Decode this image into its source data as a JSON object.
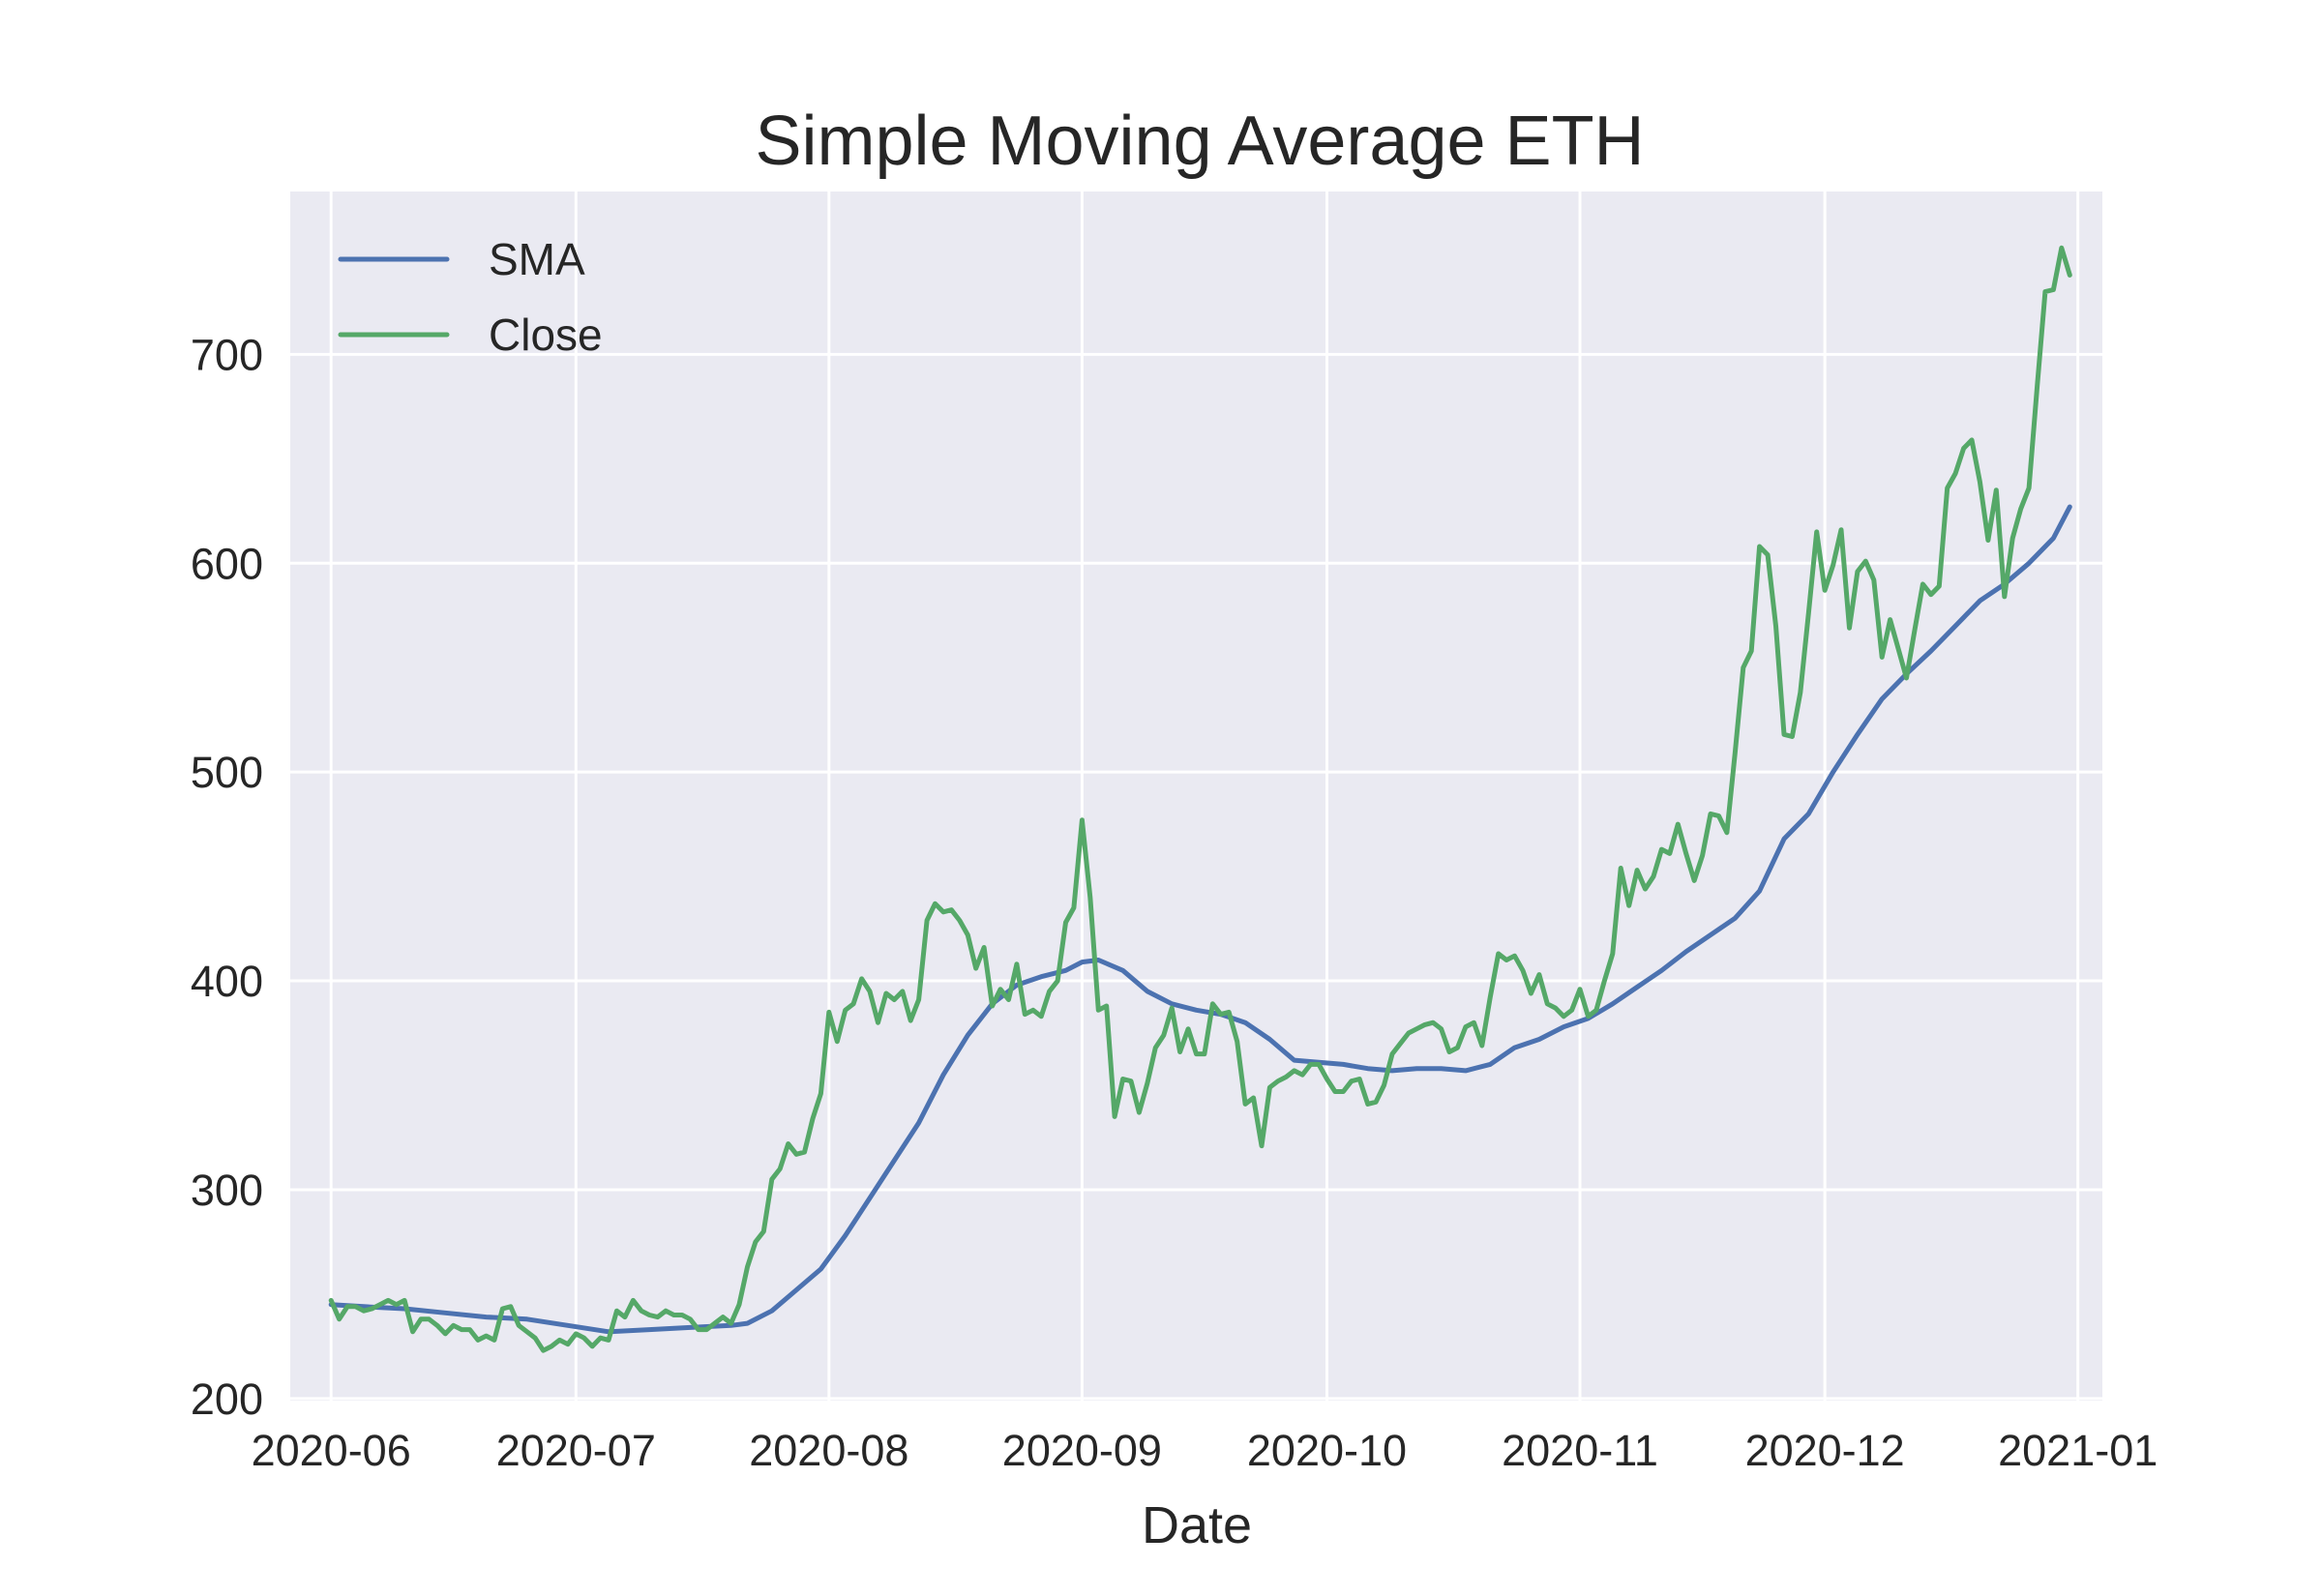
{
  "chart_data": {
    "type": "line",
    "title": "Simple Moving Average ETH",
    "xlabel": "Date",
    "ylabel": "",
    "xlim": [
      "2020-05-27",
      "2021-01-04"
    ],
    "ylim": [
      199,
      778
    ],
    "x_ticks": [
      "2020-06-01",
      "2020-07-01",
      "2020-08-01",
      "2020-09-01",
      "2020-10-01",
      "2020-11-01",
      "2020-12-01",
      "2021-01-01"
    ],
    "x_tick_labels": [
      "2020-06",
      "2020-07",
      "2020-08",
      "2020-09",
      "2020-10",
      "2020-11",
      "2020-12",
      "2021-01"
    ],
    "y_ticks": [
      200,
      300,
      400,
      500,
      600,
      700
    ],
    "y_tick_labels": [
      "200",
      "300",
      "400",
      "500",
      "600",
      "700"
    ],
    "grid": true,
    "background": "#eaeaf2",
    "legend_position": "upper-left",
    "series": [
      {
        "name": "SMA",
        "color": "#4c72b0",
        "points": [
          [
            "2020-06-01",
            245
          ],
          [
            "2020-06-05",
            244
          ],
          [
            "2020-06-10",
            243
          ],
          [
            "2020-06-15",
            241
          ],
          [
            "2020-06-20",
            239
          ],
          [
            "2020-06-25",
            238
          ],
          [
            "2020-06-30",
            235
          ],
          [
            "2020-07-05",
            232
          ],
          [
            "2020-07-10",
            233
          ],
          [
            "2020-07-15",
            234
          ],
          [
            "2020-07-20",
            235
          ],
          [
            "2020-07-22",
            236
          ],
          [
            "2020-07-25",
            242
          ],
          [
            "2020-07-28",
            252
          ],
          [
            "2020-07-31",
            262
          ],
          [
            "2020-08-03",
            278
          ],
          [
            "2020-08-06",
            296
          ],
          [
            "2020-08-09",
            314
          ],
          [
            "2020-08-12",
            332
          ],
          [
            "2020-08-15",
            355
          ],
          [
            "2020-08-18",
            374
          ],
          [
            "2020-08-21",
            389
          ],
          [
            "2020-08-24",
            398
          ],
          [
            "2020-08-27",
            402
          ],
          [
            "2020-08-30",
            405
          ],
          [
            "2020-09-01",
            409
          ],
          [
            "2020-09-03",
            410
          ],
          [
            "2020-09-06",
            405
          ],
          [
            "2020-09-09",
            395
          ],
          [
            "2020-09-12",
            389
          ],
          [
            "2020-09-15",
            386
          ],
          [
            "2020-09-18",
            384
          ],
          [
            "2020-09-21",
            380
          ],
          [
            "2020-09-24",
            372
          ],
          [
            "2020-09-27",
            362
          ],
          [
            "2020-09-30",
            361
          ],
          [
            "2020-10-03",
            360
          ],
          [
            "2020-10-06",
            358
          ],
          [
            "2020-10-09",
            357
          ],
          [
            "2020-10-12",
            358
          ],
          [
            "2020-10-15",
            358
          ],
          [
            "2020-10-18",
            357
          ],
          [
            "2020-10-21",
            360
          ],
          [
            "2020-10-24",
            368
          ],
          [
            "2020-10-27",
            372
          ],
          [
            "2020-10-30",
            378
          ],
          [
            "2020-11-02",
            382
          ],
          [
            "2020-11-05",
            389
          ],
          [
            "2020-11-08",
            397
          ],
          [
            "2020-11-11",
            405
          ],
          [
            "2020-11-14",
            414
          ],
          [
            "2020-11-17",
            422
          ],
          [
            "2020-11-20",
            430
          ],
          [
            "2020-11-23",
            443
          ],
          [
            "2020-11-26",
            468
          ],
          [
            "2020-11-29",
            480
          ],
          [
            "2020-12-02",
            500
          ],
          [
            "2020-12-05",
            518
          ],
          [
            "2020-12-08",
            535
          ],
          [
            "2020-12-11",
            547
          ],
          [
            "2020-12-14",
            558
          ],
          [
            "2020-12-17",
            570
          ],
          [
            "2020-12-20",
            582
          ],
          [
            "2020-12-23",
            590
          ],
          [
            "2020-12-26",
            600
          ],
          [
            "2020-12-29",
            612
          ],
          [
            "2020-12-31",
            627
          ]
        ]
      },
      {
        "name": "Close",
        "color": "#55a868",
        "points": [
          [
            "2020-06-01",
            247
          ],
          [
            "2020-06-02",
            238
          ],
          [
            "2020-06-03",
            244
          ],
          [
            "2020-06-04",
            244
          ],
          [
            "2020-06-05",
            242
          ],
          [
            "2020-06-06",
            243
          ],
          [
            "2020-06-07",
            245
          ],
          [
            "2020-06-08",
            247
          ],
          [
            "2020-06-09",
            245
          ],
          [
            "2020-06-10",
            247
          ],
          [
            "2020-06-11",
            232
          ],
          [
            "2020-06-12",
            238
          ],
          [
            "2020-06-13",
            238
          ],
          [
            "2020-06-14",
            235
          ],
          [
            "2020-06-15",
            231
          ],
          [
            "2020-06-16",
            235
          ],
          [
            "2020-06-17",
            233
          ],
          [
            "2020-06-18",
            233
          ],
          [
            "2020-06-19",
            228
          ],
          [
            "2020-06-20",
            230
          ],
          [
            "2020-06-21",
            228
          ],
          [
            "2020-06-22",
            243
          ],
          [
            "2020-06-23",
            244
          ],
          [
            "2020-06-24",
            235
          ],
          [
            "2020-06-25",
            232
          ],
          [
            "2020-06-26",
            229
          ],
          [
            "2020-06-27",
            223
          ],
          [
            "2020-06-28",
            225
          ],
          [
            "2020-06-29",
            228
          ],
          [
            "2020-06-30",
            226
          ],
          [
            "2020-07-01",
            231
          ],
          [
            "2020-07-02",
            229
          ],
          [
            "2020-07-03",
            225
          ],
          [
            "2020-07-04",
            229
          ],
          [
            "2020-07-05",
            228
          ],
          [
            "2020-07-06",
            242
          ],
          [
            "2020-07-07",
            239
          ],
          [
            "2020-07-08",
            247
          ],
          [
            "2020-07-09",
            242
          ],
          [
            "2020-07-10",
            240
          ],
          [
            "2020-07-11",
            239
          ],
          [
            "2020-07-12",
            242
          ],
          [
            "2020-07-13",
            240
          ],
          [
            "2020-07-14",
            240
          ],
          [
            "2020-07-15",
            238
          ],
          [
            "2020-07-16",
            233
          ],
          [
            "2020-07-17",
            233
          ],
          [
            "2020-07-18",
            236
          ],
          [
            "2020-07-19",
            239
          ],
          [
            "2020-07-20",
            236
          ],
          [
            "2020-07-21",
            245
          ],
          [
            "2020-07-22",
            263
          ],
          [
            "2020-07-23",
            275
          ],
          [
            "2020-07-24",
            280
          ],
          [
            "2020-07-25",
            305
          ],
          [
            "2020-07-26",
            310
          ],
          [
            "2020-07-27",
            322
          ],
          [
            "2020-07-28",
            317
          ],
          [
            "2020-07-29",
            318
          ],
          [
            "2020-07-30",
            334
          ],
          [
            "2020-07-31",
            346
          ],
          [
            "2020-08-01",
            385
          ],
          [
            "2020-08-02",
            371
          ],
          [
            "2020-08-03",
            386
          ],
          [
            "2020-08-04",
            389
          ],
          [
            "2020-08-05",
            401
          ],
          [
            "2020-08-06",
            395
          ],
          [
            "2020-08-07",
            380
          ],
          [
            "2020-08-08",
            394
          ],
          [
            "2020-08-09",
            391
          ],
          [
            "2020-08-10",
            395
          ],
          [
            "2020-08-11",
            381
          ],
          [
            "2020-08-12",
            391
          ],
          [
            "2020-08-13",
            429
          ],
          [
            "2020-08-14",
            437
          ],
          [
            "2020-08-15",
            433
          ],
          [
            "2020-08-16",
            434
          ],
          [
            "2020-08-17",
            429
          ],
          [
            "2020-08-18",
            422
          ],
          [
            "2020-08-19",
            406
          ],
          [
            "2020-08-20",
            416
          ],
          [
            "2020-08-21",
            388
          ],
          [
            "2020-08-22",
            396
          ],
          [
            "2020-08-23",
            391
          ],
          [
            "2020-08-24",
            408
          ],
          [
            "2020-08-25",
            384
          ],
          [
            "2020-08-26",
            386
          ],
          [
            "2020-08-27",
            383
          ],
          [
            "2020-08-28",
            395
          ],
          [
            "2020-08-29",
            400
          ],
          [
            "2020-08-30",
            428
          ],
          [
            "2020-08-31",
            435
          ],
          [
            "2020-09-01",
            477
          ],
          [
            "2020-09-02",
            440
          ],
          [
            "2020-09-03",
            386
          ],
          [
            "2020-09-04",
            388
          ],
          [
            "2020-09-05",
            335
          ],
          [
            "2020-09-06",
            353
          ],
          [
            "2020-09-07",
            352
          ],
          [
            "2020-09-08",
            337
          ],
          [
            "2020-09-09",
            351
          ],
          [
            "2020-09-10",
            368
          ],
          [
            "2020-09-11",
            374
          ],
          [
            "2020-09-12",
            387
          ],
          [
            "2020-09-13",
            366
          ],
          [
            "2020-09-14",
            377
          ],
          [
            "2020-09-15",
            365
          ],
          [
            "2020-09-16",
            365
          ],
          [
            "2020-09-17",
            389
          ],
          [
            "2020-09-18",
            384
          ],
          [
            "2020-09-19",
            385
          ],
          [
            "2020-09-20",
            371
          ],
          [
            "2020-09-21",
            341
          ],
          [
            "2020-09-22",
            344
          ],
          [
            "2020-09-23",
            321
          ],
          [
            "2020-09-24",
            349
          ],
          [
            "2020-09-25",
            352
          ],
          [
            "2020-09-26",
            354
          ],
          [
            "2020-09-27",
            357
          ],
          [
            "2020-09-28",
            355
          ],
          [
            "2020-09-29",
            360
          ],
          [
            "2020-09-30",
            360
          ],
          [
            "2020-10-01",
            353
          ],
          [
            "2020-10-02",
            347
          ],
          [
            "2020-10-03",
            347
          ],
          [
            "2020-10-04",
            352
          ],
          [
            "2020-10-05",
            353
          ],
          [
            "2020-10-06",
            341
          ],
          [
            "2020-10-07",
            342
          ],
          [
            "2020-10-08",
            350
          ],
          [
            "2020-10-09",
            365
          ],
          [
            "2020-10-10",
            370
          ],
          [
            "2020-10-11",
            375
          ],
          [
            "2020-10-12",
            377
          ],
          [
            "2020-10-13",
            379
          ],
          [
            "2020-10-14",
            380
          ],
          [
            "2020-10-15",
            377
          ],
          [
            "2020-10-16",
            366
          ],
          [
            "2020-10-17",
            368
          ],
          [
            "2020-10-18",
            378
          ],
          [
            "2020-10-19",
            380
          ],
          [
            "2020-10-20",
            369
          ],
          [
            "2020-10-21",
            392
          ],
          [
            "2020-10-22",
            413
          ],
          [
            "2020-10-23",
            410
          ],
          [
            "2020-10-24",
            412
          ],
          [
            "2020-10-25",
            405
          ],
          [
            "2020-10-26",
            394
          ],
          [
            "2020-10-27",
            403
          ],
          [
            "2020-10-28",
            389
          ],
          [
            "2020-10-29",
            387
          ],
          [
            "2020-10-30",
            383
          ],
          [
            "2020-10-31",
            386
          ],
          [
            "2020-11-01",
            396
          ],
          [
            "2020-11-02",
            383
          ],
          [
            "2020-11-03",
            386
          ],
          [
            "2020-11-04",
            400
          ],
          [
            "2020-11-05",
            413
          ],
          [
            "2020-11-06",
            454
          ],
          [
            "2020-11-07",
            436
          ],
          [
            "2020-11-08",
            453
          ],
          [
            "2020-11-09",
            444
          ],
          [
            "2020-11-10",
            450
          ],
          [
            "2020-11-11",
            463
          ],
          [
            "2020-11-12",
            461
          ],
          [
            "2020-11-13",
            475
          ],
          [
            "2020-11-14",
            461
          ],
          [
            "2020-11-15",
            448
          ],
          [
            "2020-11-16",
            460
          ],
          [
            "2020-11-17",
            480
          ],
          [
            "2020-11-18",
            479
          ],
          [
            "2020-11-19",
            471
          ],
          [
            "2020-11-20",
            509
          ],
          [
            "2020-11-21",
            550
          ],
          [
            "2020-11-22",
            558
          ],
          [
            "2020-11-23",
            608
          ],
          [
            "2020-11-24",
            604
          ],
          [
            "2020-11-25",
            570
          ],
          [
            "2020-11-26",
            518
          ],
          [
            "2020-11-27",
            517
          ],
          [
            "2020-11-28",
            538
          ],
          [
            "2020-11-29",
            576
          ],
          [
            "2020-11-30",
            615
          ],
          [
            "2020-12-01",
            587
          ],
          [
            "2020-12-02",
            599
          ],
          [
            "2020-12-03",
            616
          ],
          [
            "2020-12-04",
            569
          ],
          [
            "2020-12-05",
            596
          ],
          [
            "2020-12-06",
            601
          ],
          [
            "2020-12-07",
            592
          ],
          [
            "2020-12-08",
            555
          ],
          [
            "2020-12-09",
            573
          ],
          [
            "2020-12-10",
            559
          ],
          [
            "2020-12-11",
            545
          ],
          [
            "2020-12-12",
            568
          ],
          [
            "2020-12-13",
            590
          ],
          [
            "2020-12-14",
            585
          ],
          [
            "2020-12-15",
            589
          ],
          [
            "2020-12-16",
            636
          ],
          [
            "2020-12-17",
            643
          ],
          [
            "2020-12-18",
            655
          ],
          [
            "2020-12-19",
            659
          ],
          [
            "2020-12-20",
            639
          ],
          [
            "2020-12-21",
            611
          ],
          [
            "2020-12-22",
            635
          ],
          [
            "2020-12-23",
            584
          ],
          [
            "2020-12-24",
            612
          ],
          [
            "2020-12-25",
            626
          ],
          [
            "2020-12-26",
            636
          ],
          [
            "2020-12-27",
            684
          ],
          [
            "2020-12-28",
            730
          ],
          [
            "2020-12-29",
            731
          ],
          [
            "2020-12-30",
            751
          ],
          [
            "2020-12-31",
            738
          ]
        ]
      }
    ]
  }
}
